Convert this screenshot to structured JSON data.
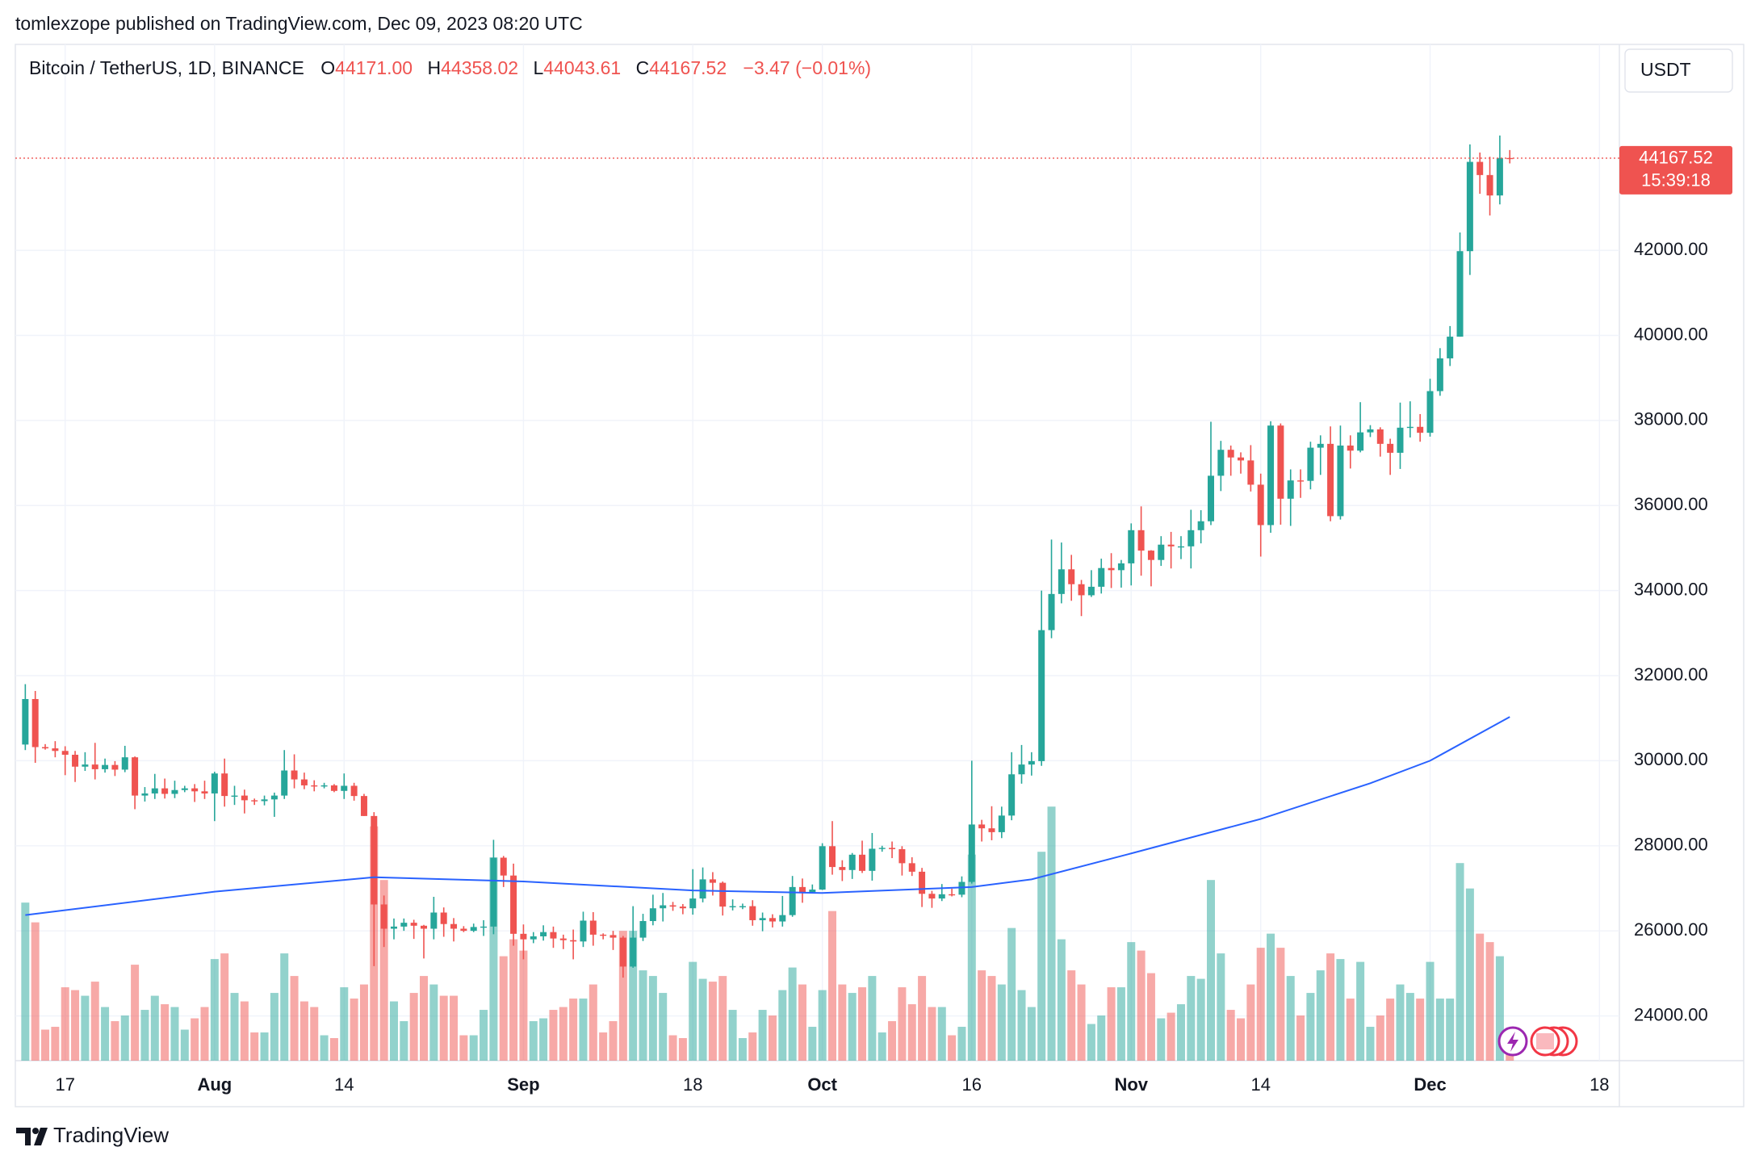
{
  "header": {
    "byline": "tomlexzope published on TradingView.com, Dec 09, 2023 08:20 UTC",
    "footer": "TradingView"
  },
  "chart_data": {
    "type": "candlestick",
    "legend": {
      "symbol": "Bitcoin / TetherUS, 1D, BINANCE",
      "keys": [
        "O",
        "H",
        "L",
        "C"
      ],
      "values": [
        "44171.00",
        "44358.02",
        "44043.61",
        "44167.52"
      ],
      "change": "−3.47 (−0.01%)"
    },
    "currency": "USDT",
    "countdown": "15:39:18",
    "up_color": "#26a69a",
    "down_color": "#ef5350",
    "grid": true,
    "xlim": [
      "07-12",
      "12-20"
    ],
    "xticks": [
      {
        "value": "07-17",
        "label": "17"
      },
      {
        "value": "08-01",
        "label": "Aug"
      },
      {
        "value": "08-14",
        "label": "14"
      },
      {
        "value": "09-01",
        "label": "Sep"
      },
      {
        "value": "09-18",
        "label": "18"
      },
      {
        "value": "10-01",
        "label": "Oct"
      },
      {
        "value": "10-16",
        "label": "16"
      },
      {
        "value": "11-01",
        "label": "Nov"
      },
      {
        "value": "11-14",
        "label": "14"
      },
      {
        "value": "12-01",
        "label": "Dec"
      },
      {
        "value": "12-18",
        "label": "18"
      }
    ],
    "ylim": [
      22947,
      46842
    ],
    "yticks": [
      {
        "value": 24000,
        "label": "24000.00"
      },
      {
        "value": 26000,
        "label": "26000.00"
      },
      {
        "value": 28000,
        "label": "28000.00"
      },
      {
        "value": 30000,
        "label": "30000.00"
      },
      {
        "value": 32000,
        "label": "32000.00"
      },
      {
        "value": 34000,
        "label": "34000.00"
      },
      {
        "value": 36000,
        "label": "36000.00"
      },
      {
        "value": 38000,
        "label": "38000.00"
      },
      {
        "value": 40000,
        "label": "40000.00"
      },
      {
        "value": 42000,
        "label": "42000.00"
      }
    ],
    "vlim": [
      0,
      360000
    ],
    "x": [
      "07-13",
      "07-14",
      "07-15",
      "07-16",
      "07-17",
      "07-18",
      "07-19",
      "07-20",
      "07-21",
      "07-22",
      "07-23",
      "07-24",
      "07-25",
      "07-26",
      "07-27",
      "07-28",
      "07-29",
      "07-30",
      "07-31",
      "08-01",
      "08-02",
      "08-03",
      "08-04",
      "08-05",
      "08-06",
      "08-07",
      "08-08",
      "08-09",
      "08-10",
      "08-11",
      "08-12",
      "08-13",
      "08-14",
      "08-15",
      "08-16",
      "08-17",
      "08-18",
      "08-19",
      "08-20",
      "08-21",
      "08-22",
      "08-23",
      "08-24",
      "08-25",
      "08-26",
      "08-27",
      "08-28",
      "08-29",
      "08-30",
      "08-31",
      "09-01",
      "09-02",
      "09-03",
      "09-04",
      "09-05",
      "09-06",
      "09-07",
      "09-08",
      "09-09",
      "09-10",
      "09-11",
      "09-12",
      "09-13",
      "09-14",
      "09-15",
      "09-16",
      "09-17",
      "09-18",
      "09-19",
      "09-20",
      "09-21",
      "09-22",
      "09-23",
      "09-24",
      "09-25",
      "09-26",
      "09-27",
      "09-28",
      "09-29",
      "09-30",
      "10-01",
      "10-02",
      "10-03",
      "10-04",
      "10-05",
      "10-06",
      "10-07",
      "10-08",
      "10-09",
      "10-10",
      "10-11",
      "10-12",
      "10-13",
      "10-14",
      "10-15",
      "10-16",
      "10-17",
      "10-18",
      "10-19",
      "10-20",
      "10-21",
      "10-22",
      "10-23",
      "10-24",
      "10-25",
      "10-26",
      "10-27",
      "10-28",
      "10-29",
      "10-30",
      "10-31",
      "11-01",
      "11-02",
      "11-03",
      "11-04",
      "11-05",
      "11-06",
      "11-07",
      "11-08",
      "11-09",
      "11-10",
      "11-11",
      "11-12",
      "11-13",
      "11-14",
      "11-15",
      "11-16",
      "11-17",
      "11-18",
      "11-19",
      "11-20",
      "11-21",
      "11-22",
      "11-23",
      "11-24",
      "11-25",
      "11-26",
      "11-27",
      "11-28",
      "11-29",
      "11-30",
      "12-01",
      "12-02",
      "12-03",
      "12-04",
      "12-05",
      "12-06",
      "12-07",
      "12-08",
      "12-09"
    ],
    "open": [
      30380,
      31450,
      30320,
      30290,
      30230,
      30140,
      29860,
      29910,
      29800,
      29900,
      29790,
      30080,
      29180,
      29230,
      29350,
      29220,
      29310,
      29350,
      29280,
      29230,
      29700,
      29170,
      29180,
      29070,
      29050,
      29090,
      29180,
      29770,
      29560,
      29420,
      29400,
      29420,
      29290,
      29410,
      29170,
      28700,
      26620,
      26050,
      26100,
      26190,
      26120,
      26050,
      26430,
      26160,
      26050,
      26000,
      26090,
      26100,
      27720,
      27300,
      25930,
      25800,
      25870,
      25970,
      25820,
      25780,
      25750,
      26240,
      25910,
      25900,
      25840,
      25160,
      25840,
      26230,
      26530,
      26600,
      26570,
      26530,
      26760,
      27210,
      27130,
      26570,
      26580,
      26580,
      26250,
      26300,
      26220,
      26370,
      27030,
      26910,
      26970,
      27990,
      27500,
      27430,
      27790,
      27410,
      27930,
      27950,
      27920,
      27590,
      27390,
      26870,
      26760,
      26860,
      26850,
      27150,
      28500,
      28410,
      28320,
      28710,
      29680,
      29910,
      29990,
      33070,
      33920,
      34500,
      34150,
      33890,
      34090,
      34530,
      34480,
      34640,
      35420,
      34940,
      34720,
      35080,
      35040,
      35040,
      35420,
      35630,
      36700,
      37310,
      37130,
      37060,
      36490,
      35540,
      37880,
      36160,
      36590,
      36580,
      37360,
      37450,
      35750,
      37410,
      37290,
      37720,
      37790,
      37450,
      37240,
      37830,
      37850,
      37710,
      38690,
      39460,
      39970,
      41980,
      44080,
      43770,
      43290,
      44171.0
    ],
    "high": [
      31800,
      31640,
      30390,
      30460,
      30340,
      30230,
      30200,
      30420,
      30050,
      29990,
      30350,
      30100,
      29380,
      29690,
      29580,
      29530,
      29410,
      29450,
      29530,
      29740,
      30050,
      29410,
      29320,
      29110,
      29180,
      29250,
      30250,
      30150,
      29720,
      29540,
      29480,
      29450,
      29700,
      29480,
      29220,
      28790,
      26830,
      26290,
      26290,
      26260,
      26140,
      26800,
      26550,
      26300,
      26110,
      26170,
      26250,
      28140,
      27760,
      27580,
      26150,
      25970,
      26130,
      26100,
      25910,
      26030,
      26450,
      26440,
      25940,
      26000,
      25880,
      26580,
      26400,
      26850,
      26890,
      26680,
      26630,
      27450,
      27490,
      27380,
      27160,
      26740,
      26640,
      26720,
      26430,
      26390,
      26820,
      27290,
      27230,
      27090,
      28060,
      28580,
      27660,
      27830,
      28120,
      28300,
      28000,
      28100,
      27990,
      27730,
      27480,
      26940,
      27100,
      26990,
      27280,
      30000,
      28610,
      28930,
      28920,
      30200,
      30370,
      30200,
      34000,
      35200,
      35130,
      34840,
      34250,
      34480,
      34750,
      34880,
      34720,
      35580,
      35980,
      34950,
      35280,
      35380,
      35280,
      35900,
      35890,
      37970,
      37520,
      37410,
      37250,
      37420,
      36750,
      37980,
      37930,
      36850,
      36850,
      37500,
      37650,
      37860,
      37880,
      37650,
      38430,
      37890,
      37840,
      37570,
      38420,
      38450,
      38150,
      38980,
      39700,
      40220,
      42420,
      44490,
      44300,
      44200,
      44700,
      44358.02
    ],
    "low": [
      30250,
      29950,
      30260,
      30080,
      29660,
      29500,
      29760,
      29560,
      29720,
      29640,
      29730,
      28860,
      29040,
      29100,
      29110,
      29120,
      29260,
      29030,
      29100,
      28580,
      28920,
      28960,
      28760,
      28960,
      28950,
      28680,
      29100,
      29350,
      29330,
      29280,
      29350,
      29260,
      29100,
      29060,
      28700,
      25170,
      25620,
      25800,
      26000,
      25810,
      25350,
      25800,
      25860,
      25750,
      25970,
      25970,
      25880,
      25920,
      27030,
      25650,
      25330,
      25710,
      25770,
      25600,
      25570,
      25330,
      25620,
      25650,
      25800,
      25550,
      24900,
      25130,
      25760,
      26130,
      26220,
      26470,
      26390,
      26380,
      26670,
      26830,
      26360,
      26480,
      26510,
      26120,
      25990,
      26080,
      26100,
      26330,
      26660,
      26880,
      26960,
      27320,
      27170,
      27220,
      27360,
      27180,
      27860,
      27710,
      27300,
      27290,
      26560,
      26540,
      26700,
      26810,
      26790,
      27110,
      28100,
      28130,
      28180,
      28600,
      29460,
      29650,
      29880,
      32880,
      33700,
      33760,
      33400,
      33850,
      33930,
      34060,
      34070,
      34120,
      34350,
      34100,
      34580,
      34520,
      34740,
      34520,
      35110,
      35540,
      36340,
      36700,
      36750,
      36330,
      34800,
      35360,
      35550,
      35520,
      36180,
      36380,
      36720,
      35630,
      35670,
      36870,
      37250,
      37610,
      37150,
      36720,
      36860,
      37600,
      37500,
      37620,
      38580,
      39280,
      39970,
      41420,
      43330,
      42820,
      43080,
      44043.61
    ],
    "close": [
      31450,
      30320,
      30290,
      30230,
      30140,
      29860,
      29910,
      29800,
      29900,
      29790,
      30080,
      29180,
      29230,
      29350,
      29220,
      29310,
      29350,
      29280,
      29230,
      29700,
      29170,
      29180,
      29070,
      29050,
      29090,
      29180,
      29770,
      29560,
      29420,
      29400,
      29420,
      29290,
      29410,
      29170,
      28700,
      26620,
      26050,
      26100,
      26190,
      26120,
      26050,
      26430,
      26160,
      26050,
      26000,
      26090,
      26100,
      27720,
      27300,
      25930,
      25800,
      25870,
      25970,
      25820,
      25780,
      25750,
      26240,
      25910,
      25900,
      25840,
      25160,
      25840,
      26230,
      26530,
      26600,
      26570,
      26530,
      26760,
      27210,
      27130,
      26570,
      26580,
      26580,
      26250,
      26300,
      26220,
      26370,
      27030,
      26910,
      26970,
      27990,
      27500,
      27430,
      27790,
      27410,
      27930,
      27950,
      27920,
      27590,
      27390,
      26870,
      26760,
      26860,
      26850,
      27150,
      28500,
      28410,
      28320,
      28710,
      29680,
      29910,
      29990,
      33070,
      33920,
      34500,
      34150,
      33890,
      34090,
      34530,
      34480,
      34640,
      35420,
      34940,
      34720,
      35080,
      35040,
      35040,
      35420,
      35630,
      36700,
      37310,
      37130,
      37060,
      36490,
      35540,
      37880,
      36160,
      36590,
      36580,
      37360,
      37450,
      35750,
      37410,
      37290,
      37720,
      37790,
      37450,
      37240,
      37830,
      37850,
      37710,
      38690,
      39460,
      39970,
      41980,
      44080,
      43770,
      43290,
      44170,
      44167.52
    ],
    "volume": [
      56000,
      49000,
      11000,
      12000,
      26000,
      25000,
      23000,
      28000,
      19000,
      14000,
      16000,
      34000,
      18000,
      23000,
      20000,
      19000,
      11000,
      15000,
      19000,
      36000,
      38000,
      24000,
      21000,
      10000,
      10000,
      24000,
      38000,
      30000,
      21000,
      19000,
      9000,
      8000,
      26000,
      22000,
      27000,
      83000,
      64000,
      21000,
      14000,
      24000,
      30000,
      27000,
      23000,
      23000,
      9000,
      9000,
      18000,
      72000,
      37000,
      43000,
      39000,
      14000,
      15000,
      18000,
      19000,
      22000,
      22000,
      27000,
      10000,
      14000,
      46000,
      46000,
      32000,
      30000,
      24000,
      9000,
      8000,
      35000,
      29000,
      28000,
      30000,
      18000,
      8000,
      10000,
      18000,
      16000,
      25000,
      33000,
      27000,
      12000,
      25000,
      53000,
      27000,
      24000,
      26000,
      30000,
      10000,
      14000,
      26000,
      20000,
      30000,
      19000,
      19000,
      9000,
      12000,
      73000,
      32000,
      30000,
      27000,
      47000,
      25000,
      19000,
      74000,
      90000,
      43000,
      32000,
      27000,
      13000,
      16000,
      26000,
      26000,
      42000,
      39000,
      31000,
      15000,
      17000,
      20000,
      30000,
      29000,
      64000,
      38000,
      18000,
      15000,
      27000,
      40000,
      45000,
      40000,
      30000,
      16000,
      24000,
      32000,
      38000,
      36000,
      22000,
      35000,
      12000,
      16000,
      22000,
      27000,
      24000,
      22000,
      35000,
      22000,
      22000,
      70000,
      61000,
      45000,
      42000,
      37000,
      8000
    ],
    "ma": {
      "color": "#2962ff",
      "x": [
        "07-13",
        "08-01",
        "08-17",
        "09-01",
        "09-18",
        "10-01",
        "10-16",
        "10-22",
        "11-01",
        "11-14",
        "11-25",
        "12-01",
        "12-09"
      ],
      "values": [
        26370,
        26920,
        27260,
        27160,
        26950,
        26890,
        27030,
        27210,
        27820,
        28630,
        29470,
        30000,
        31030
      ]
    }
  }
}
